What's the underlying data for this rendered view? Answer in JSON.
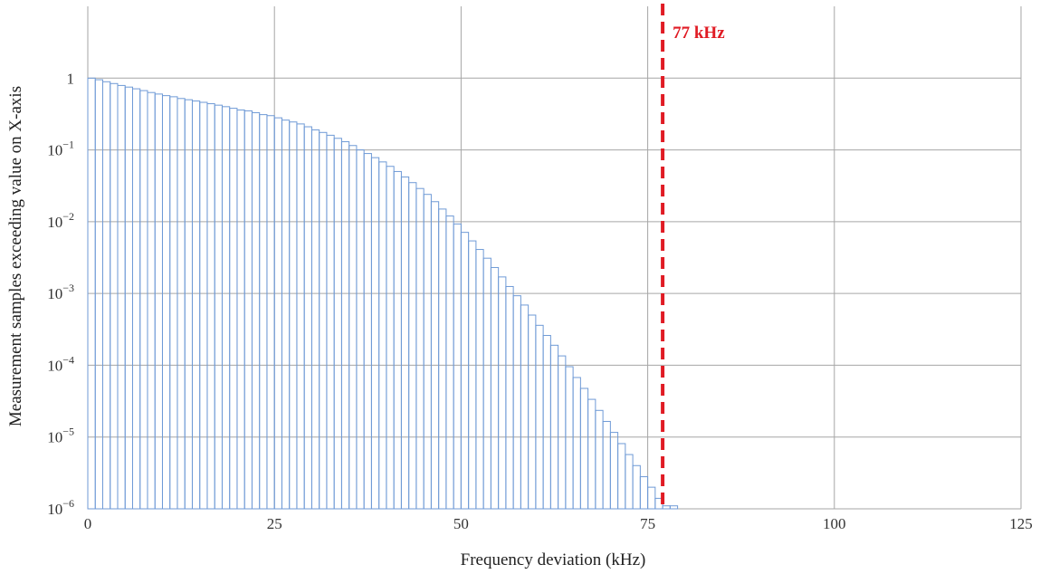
{
  "chart_data": {
    "type": "bar",
    "scale_y": "log",
    "xlabel": "Frequency deviation (kHz)",
    "ylabel": "Measurement samples exceeding value on X-axis",
    "xlim": [
      0,
      125
    ],
    "ylim": [
      1e-06,
      10
    ],
    "x_ticks": [
      0,
      25,
      50,
      75,
      100,
      125
    ],
    "y_ticks": [
      {
        "value": 1,
        "base": "1",
        "exp": ""
      },
      {
        "value": 0.1,
        "base": "10",
        "exp": "−1"
      },
      {
        "value": 0.01,
        "base": "10",
        "exp": "−2"
      },
      {
        "value": 0.001,
        "base": "10",
        "exp": "−3"
      },
      {
        "value": 0.0001,
        "base": "10",
        "exp": "−4"
      },
      {
        "value": 1e-05,
        "base": "10",
        "exp": "−5"
      },
      {
        "value": 1e-06,
        "base": "10",
        "exp": "−6"
      }
    ],
    "grid": true,
    "bar_width": 1,
    "bar_color": "#6f9ad6",
    "x": [
      0,
      1,
      2,
      3,
      4,
      5,
      6,
      7,
      8,
      9,
      10,
      11,
      12,
      13,
      14,
      15,
      16,
      17,
      18,
      19,
      20,
      21,
      22,
      23,
      24,
      25,
      26,
      27,
      28,
      29,
      30,
      31,
      32,
      33,
      34,
      35,
      36,
      37,
      38,
      39,
      40,
      41,
      42,
      43,
      44,
      45,
      46,
      47,
      48,
      49,
      50,
      51,
      52,
      53,
      54,
      55,
      56,
      57,
      58,
      59,
      60,
      61,
      62,
      63,
      64,
      65,
      66,
      67,
      68,
      69,
      70,
      71,
      72,
      73,
      74,
      75,
      76,
      77,
      78
    ],
    "values": [
      1.0,
      0.95,
      0.89,
      0.84,
      0.79,
      0.75,
      0.71,
      0.67,
      0.63,
      0.6,
      0.57,
      0.55,
      0.52,
      0.5,
      0.48,
      0.46,
      0.44,
      0.42,
      0.4,
      0.38,
      0.36,
      0.35,
      0.33,
      0.31,
      0.3,
      0.28,
      0.26,
      0.245,
      0.23,
      0.21,
      0.19,
      0.175,
      0.16,
      0.145,
      0.13,
      0.115,
      0.1,
      0.089,
      0.078,
      0.068,
      0.059,
      0.05,
      0.042,
      0.035,
      0.029,
      0.024,
      0.019,
      0.015,
      0.012,
      0.0093,
      0.0071,
      0.0054,
      0.0041,
      0.0031,
      0.0023,
      0.0017,
      0.00125,
      0.00093,
      0.00069,
      0.0005,
      0.00036,
      0.00026,
      0.00019,
      0.000135,
      9.55e-05,
      6.75e-05,
      4.76e-05,
      3.35e-05,
      2.35e-05,
      1.65e-05,
      1.16e-05,
      8.1e-06,
      5.7e-06,
      4e-06,
      2.8e-06,
      2e-06,
      1.4e-06,
      1.1e-06,
      1.1e-06
    ],
    "threshold": {
      "value": 77,
      "label": "77 kHz",
      "color": "#e01b24"
    }
  }
}
